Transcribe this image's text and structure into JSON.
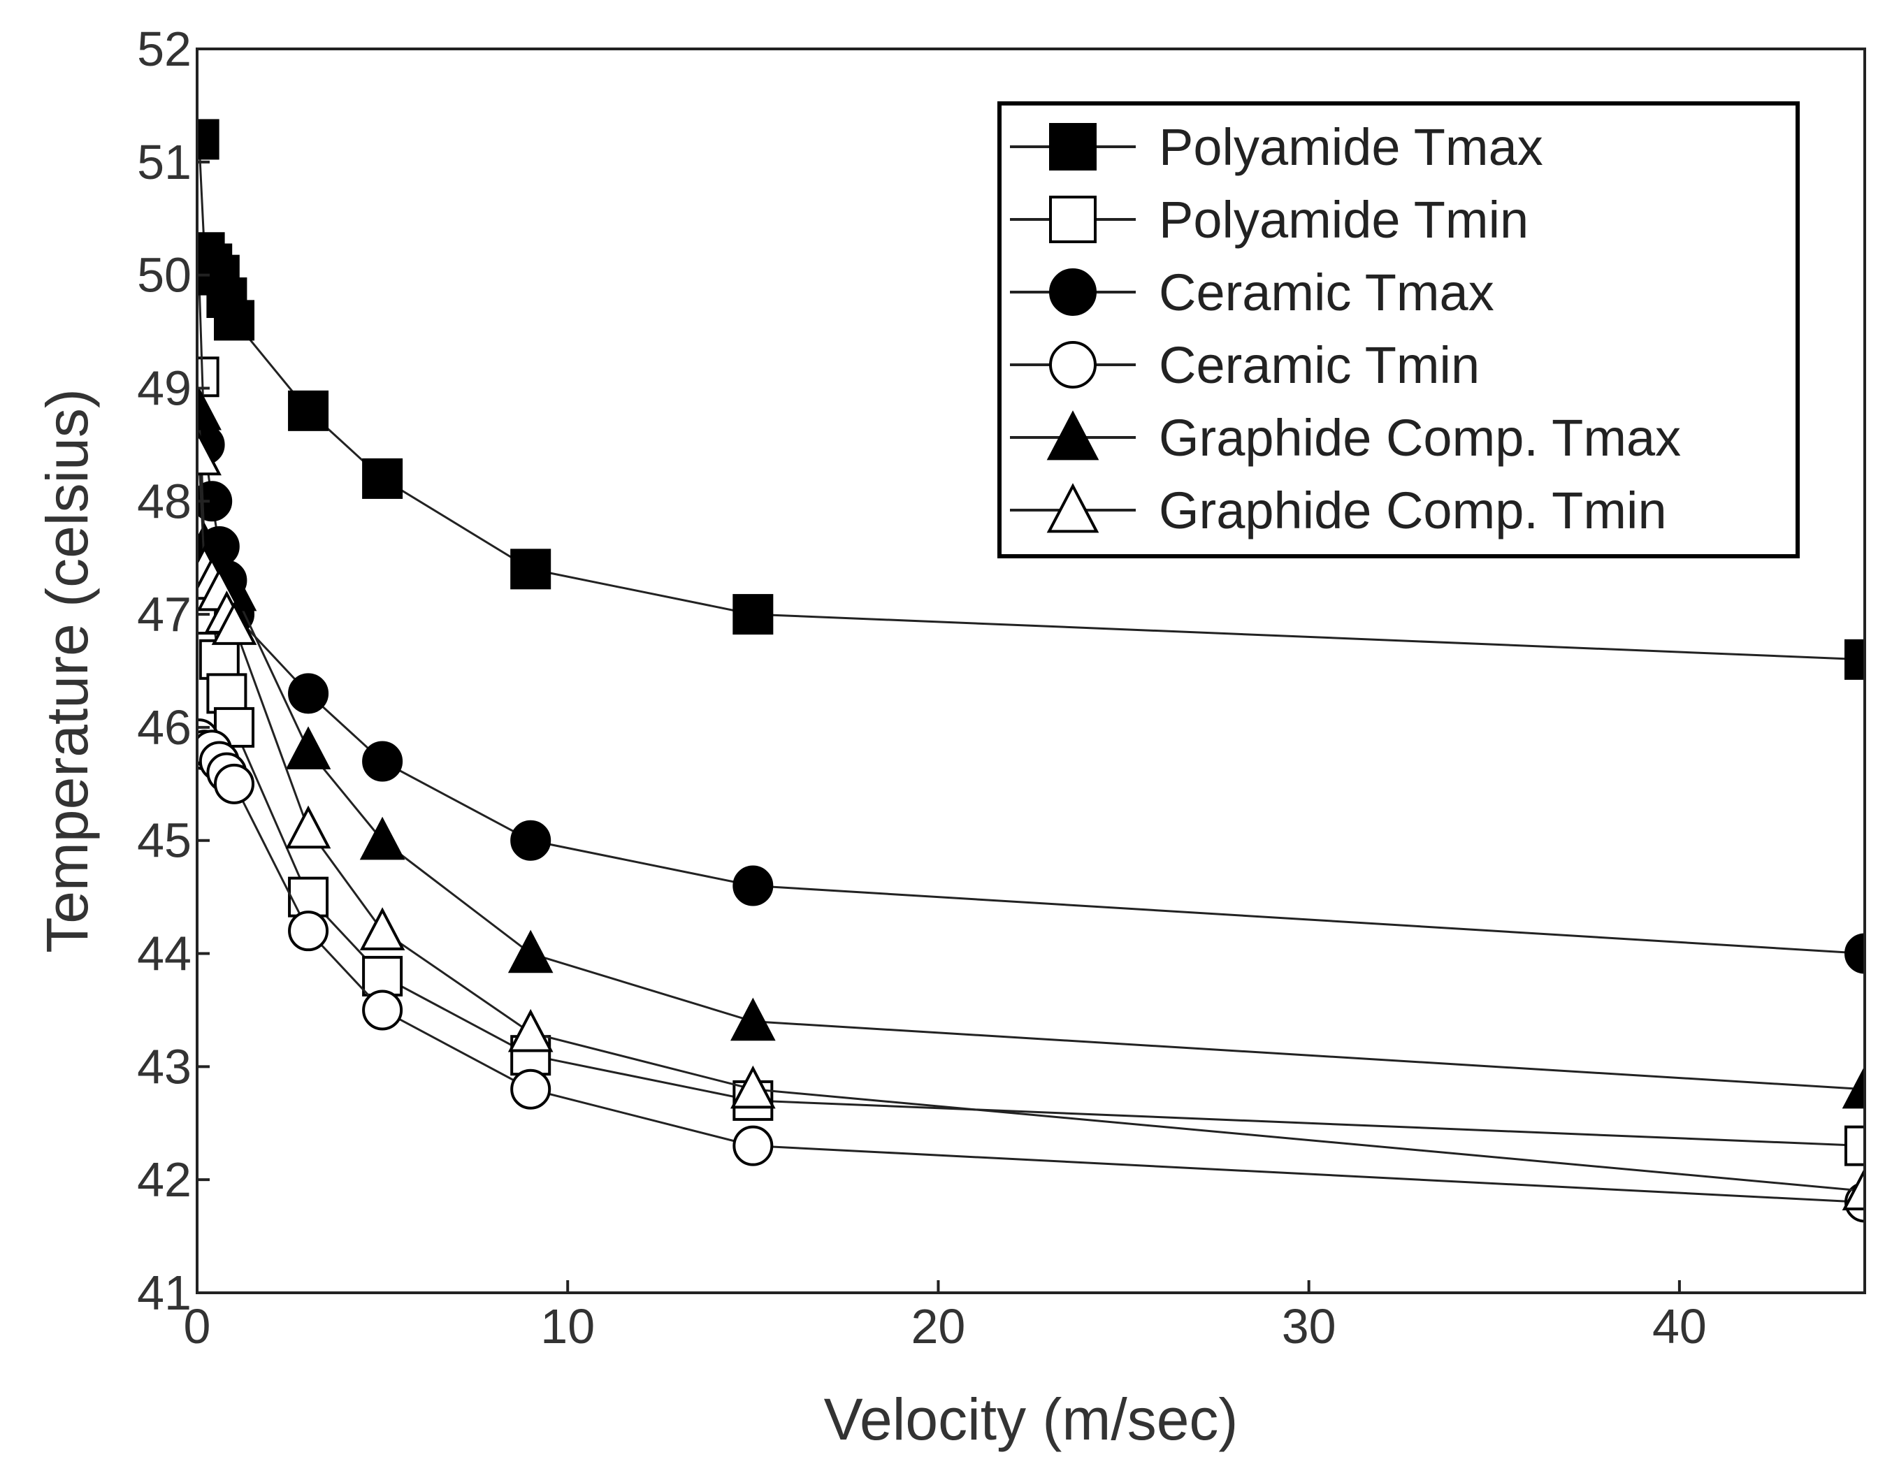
{
  "chart_data": {
    "type": "line",
    "title": "",
    "xlabel": "Velocity (m/sec)",
    "ylabel": "Temperature (celsius)",
    "xlim": [
      0,
      45
    ],
    "ylim": [
      41,
      52
    ],
    "xticks": [
      "0",
      "10",
      "20",
      "30",
      "40"
    ],
    "yticks": [
      "41",
      "42",
      "43",
      "44",
      "45",
      "46",
      "47",
      "48",
      "49",
      "50",
      "51",
      "52"
    ],
    "grid": false,
    "legend_position": "top-right",
    "series": [
      {
        "name": "Polyamide Tmax",
        "marker": "square",
        "filled": true,
        "x": [
          0.05,
          0.2,
          0.4,
          0.6,
          0.8,
          1,
          3,
          5,
          9,
          15,
          45
        ],
        "y": [
          51.2,
          50.2,
          50.1,
          50.0,
          49.8,
          49.6,
          48.8,
          48.2,
          47.4,
          47.0,
          46.6
        ]
      },
      {
        "name": "Polyamide Tmin",
        "marker": "square",
        "filled": false,
        "x": [
          0.05,
          0.2,
          0.4,
          0.6,
          0.8,
          1,
          3,
          5,
          9,
          15,
          45
        ],
        "y": [
          49.1,
          47.5,
          47.0,
          46.6,
          46.3,
          46.0,
          44.5,
          43.8,
          43.1,
          42.7,
          42.3
        ]
      },
      {
        "name": "Ceramic Tmax",
        "marker": "circle",
        "filled": true,
        "x": [
          0.05,
          0.2,
          0.4,
          0.6,
          0.8,
          1,
          3,
          5,
          9,
          15,
          45
        ],
        "y": [
          50.0,
          48.5,
          48.0,
          47.6,
          47.3,
          47.0,
          46.3,
          45.7,
          45.0,
          44.6,
          44.0
        ]
      },
      {
        "name": "Ceramic Tmin",
        "marker": "circle",
        "filled": false,
        "x": [
          0.05,
          0.2,
          0.4,
          0.6,
          0.8,
          1,
          3,
          5,
          9,
          15,
          45
        ],
        "y": [
          45.9,
          45.8,
          45.8,
          45.7,
          45.6,
          45.5,
          44.2,
          43.5,
          42.8,
          42.3,
          41.8
        ]
      },
      {
        "name": "Graphide Comp. Tmax",
        "marker": "triangle",
        "filled": true,
        "x": [
          0.05,
          0.2,
          0.4,
          0.6,
          0.8,
          1,
          3,
          5,
          9,
          15,
          45
        ],
        "y": [
          48.8,
          47.6,
          47.5,
          47.4,
          47.3,
          47.2,
          45.8,
          45.0,
          44.0,
          43.4,
          42.8
        ]
      },
      {
        "name": "Graphide Comp. Tmin",
        "marker": "triangle",
        "filled": false,
        "x": [
          0.05,
          0.2,
          0.4,
          0.6,
          0.8,
          1,
          3,
          5,
          9,
          15,
          45
        ],
        "y": [
          48.4,
          47.4,
          47.3,
          47.2,
          47.0,
          46.9,
          45.1,
          44.2,
          43.3,
          42.8,
          41.9
        ]
      }
    ]
  }
}
